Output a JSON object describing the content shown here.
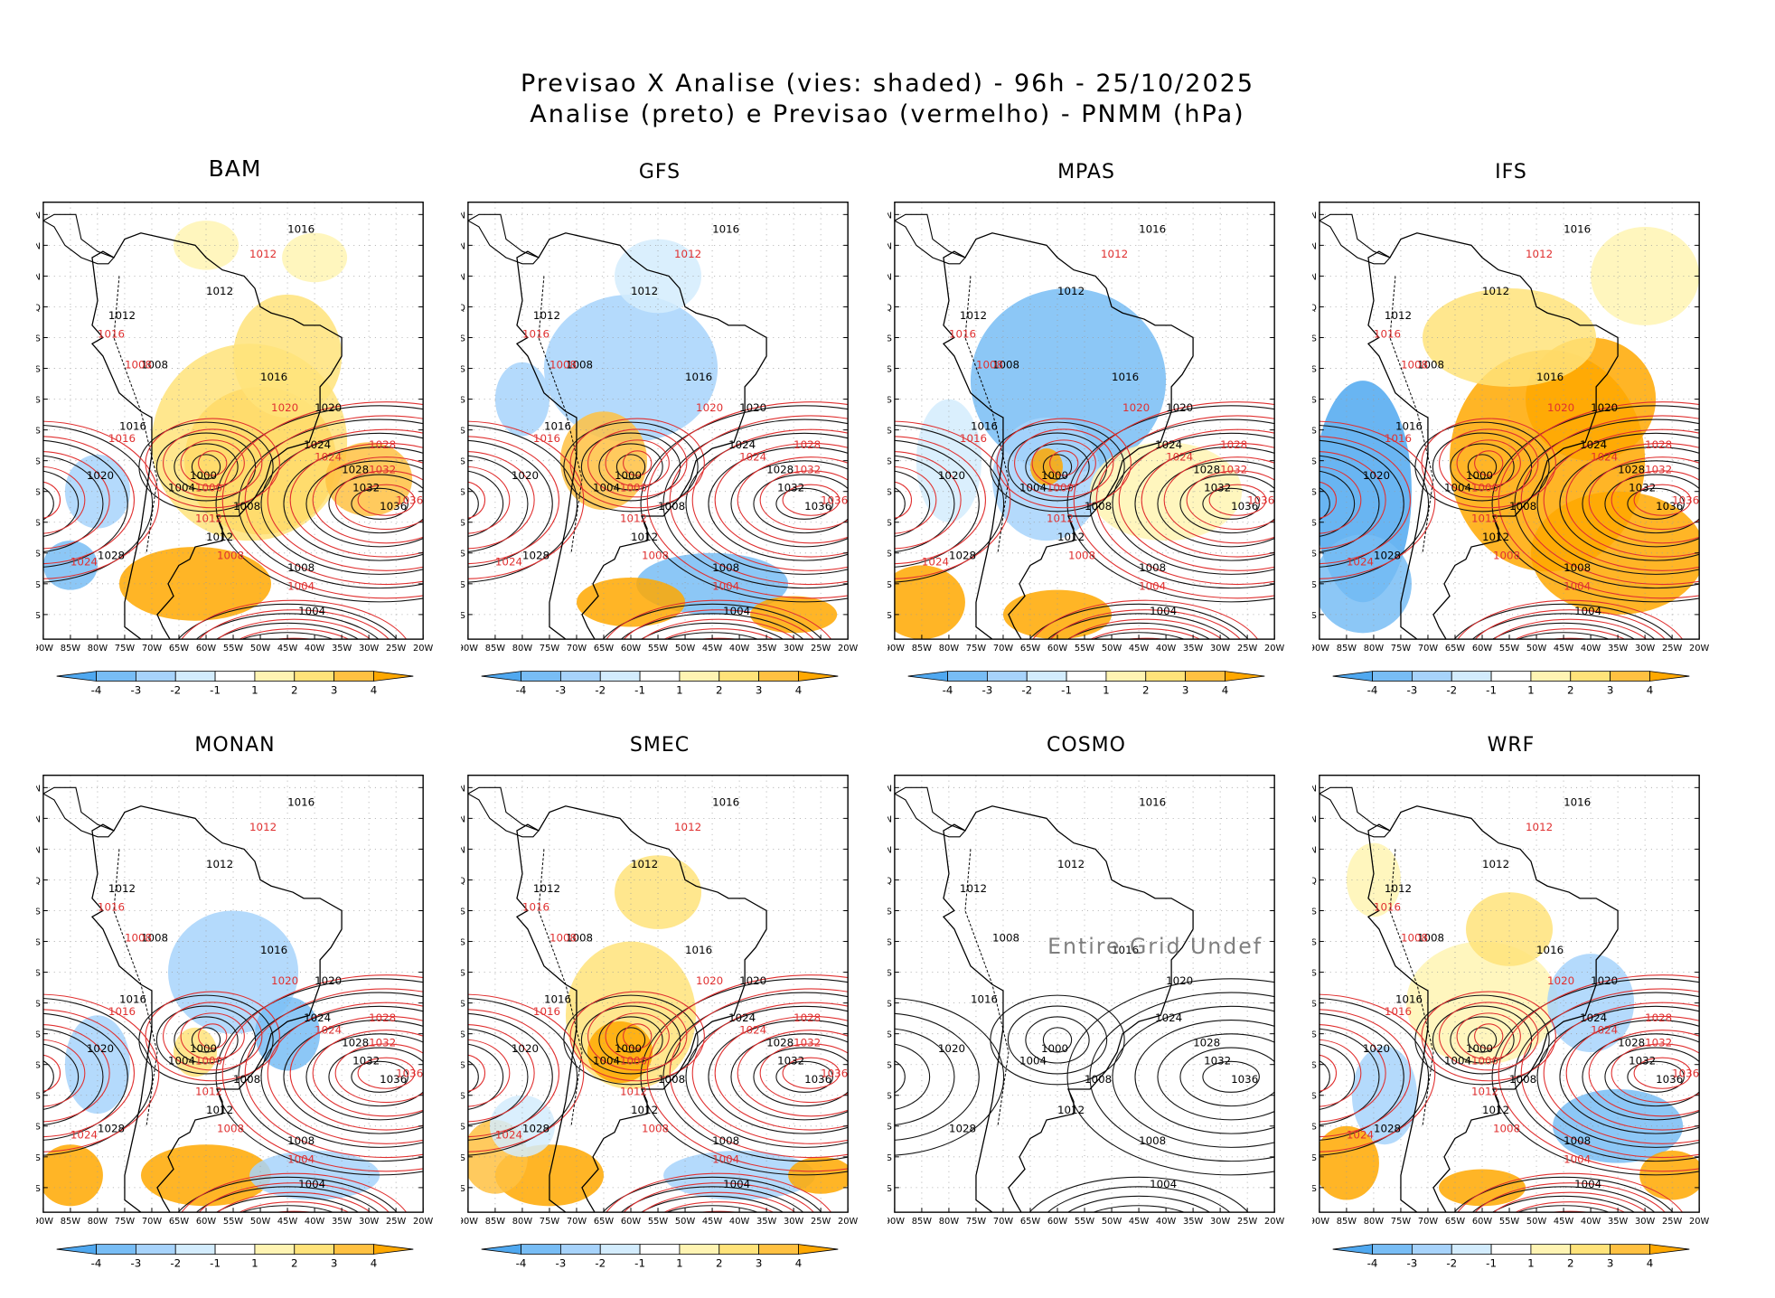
{
  "header": {
    "title_line1": "Previsao X Analise (vies: shaded) - 96h - 25/10/2025",
    "title_line2": "Analise (preto) e Previsao (vermelho) - PNMM (hPa)"
  },
  "axes": {
    "lat_labels": [
      "15N",
      "10N",
      "5N",
      "EQ",
      "5S",
      "10S",
      "15S",
      "20S",
      "25S",
      "30S",
      "35S",
      "40S",
      "45S",
      "50S"
    ],
    "lon_labels": [
      "90W",
      "85W",
      "80W",
      "75W",
      "70W",
      "65W",
      "60W",
      "55W",
      "50W",
      "45W",
      "40W",
      "35W",
      "30W",
      "25W",
      "20W"
    ]
  },
  "colorbar": {
    "labels": [
      "-4",
      "-3",
      "-2",
      "-1",
      "1",
      "2",
      "3",
      "4"
    ],
    "colors": [
      "#4fa8f0",
      "#78bdf5",
      "#a7d3fb",
      "#d3ecfd",
      "#ffffff",
      "#fff4b3",
      "#ffe37a",
      "#ffc142",
      "#ffa800"
    ]
  },
  "panels": [
    {
      "name": "BAM",
      "title": "BAM",
      "bias": "warm",
      "forecast": true
    },
    {
      "name": "GFS",
      "title": "GFS",
      "bias": "cool",
      "forecast": true
    },
    {
      "name": "MPAS",
      "title": "MPAS",
      "bias": "cool-strong",
      "forecast": true
    },
    {
      "name": "IFS",
      "title": "IFS",
      "bias": "warm-strong",
      "forecast": true
    },
    {
      "name": "MONAN",
      "title": "MONAN",
      "bias": "mixed",
      "forecast": true
    },
    {
      "name": "SMEC",
      "title": "SMEC",
      "bias": "mixed-warm",
      "forecast": true
    },
    {
      "name": "COSMO",
      "title": "COSMO",
      "bias": "none",
      "forecast": false,
      "message": "Entire Grid Undef"
    },
    {
      "name": "WRF",
      "title": "WRF",
      "bias": "mixed-cool",
      "forecast": true
    }
  ],
  "isobar_labels": {
    "analysis": [
      "1016",
      "1012",
      "1012",
      "1008",
      "1016",
      "1020",
      "1024",
      "1028",
      "1032",
      "1036",
      "1028",
      "1012",
      "1008",
      "1004",
      "1000",
      "1004",
      "1008",
      "1020",
      "1016"
    ],
    "forecast": [
      "1008",
      "1012",
      "1016",
      "1020",
      "1024",
      "1028",
      "1032",
      "1036",
      "1012",
      "1008",
      "1004",
      "1000",
      "1016",
      "1024"
    ]
  }
}
